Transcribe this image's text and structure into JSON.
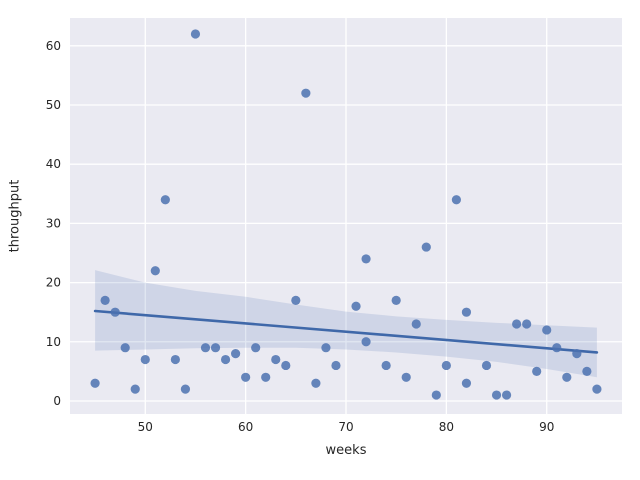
{
  "chart_data": {
    "type": "scatter",
    "title": "",
    "xlabel": "weeks",
    "ylabel": "throughput",
    "xlim": [
      42.5,
      97.5
    ],
    "ylim": [
      -2.2,
      64.7
    ],
    "xticks": [
      50,
      60,
      70,
      80,
      90
    ],
    "yticks": [
      0,
      10,
      20,
      30,
      40,
      50,
      60
    ],
    "grid": true,
    "legend": false,
    "style": "seaborn-darkgrid",
    "points": [
      [
        45,
        3
      ],
      [
        46,
        17
      ],
      [
        47,
        15
      ],
      [
        48,
        9
      ],
      [
        49,
        2
      ],
      [
        50,
        7
      ],
      [
        51,
        22
      ],
      [
        52,
        34
      ],
      [
        53,
        7
      ],
      [
        54,
        2
      ],
      [
        55,
        62
      ],
      [
        56,
        9
      ],
      [
        57,
        9
      ],
      [
        58,
        7
      ],
      [
        59,
        8
      ],
      [
        60,
        4
      ],
      [
        61,
        9
      ],
      [
        62,
        4
      ],
      [
        63,
        7
      ],
      [
        64,
        6
      ],
      [
        65,
        17
      ],
      [
        66,
        52
      ],
      [
        67,
        3
      ],
      [
        68,
        9
      ],
      [
        69,
        6
      ],
      [
        71,
        16
      ],
      [
        72,
        24
      ],
      [
        72,
        10
      ],
      [
        74,
        6
      ],
      [
        75,
        17
      ],
      [
        76,
        4
      ],
      [
        77,
        13
      ],
      [
        78,
        26
      ],
      [
        79,
        1
      ],
      [
        80,
        6
      ],
      [
        81,
        34
      ],
      [
        82,
        15
      ],
      [
        82,
        3
      ],
      [
        84,
        6
      ],
      [
        85,
        1
      ],
      [
        86,
        1
      ],
      [
        87,
        13
      ],
      [
        88,
        13
      ],
      [
        89,
        5
      ],
      [
        90,
        12
      ],
      [
        91,
        9
      ],
      [
        92,
        4
      ],
      [
        93,
        8
      ],
      [
        94,
        5
      ],
      [
        95,
        2
      ]
    ],
    "regression_line": {
      "x1": 45,
      "y1": 15.2,
      "x2": 95,
      "y2": 8.2
    },
    "confidence_band": {
      "x": [
        45,
        50,
        55,
        60,
        65,
        70,
        75,
        80,
        85,
        90,
        95
      ],
      "top": [
        22.1,
        20.0,
        18.6,
        17.6,
        16.3,
        15.1,
        14.3,
        13.7,
        13.2,
        12.8,
        12.4
      ],
      "bottom": [
        8.5,
        8.7,
        8.9,
        9.0,
        9.0,
        8.7,
        8.2,
        7.5,
        6.6,
        5.4,
        4.0
      ]
    },
    "colors": {
      "point": "#4c72b0",
      "line": "#3f68a9",
      "band": "#4c72b0",
      "plot_background": "#eaeaf2",
      "grid": "#ffffff",
      "tick_label": "#262626",
      "figure_background": "#ffffff"
    }
  }
}
